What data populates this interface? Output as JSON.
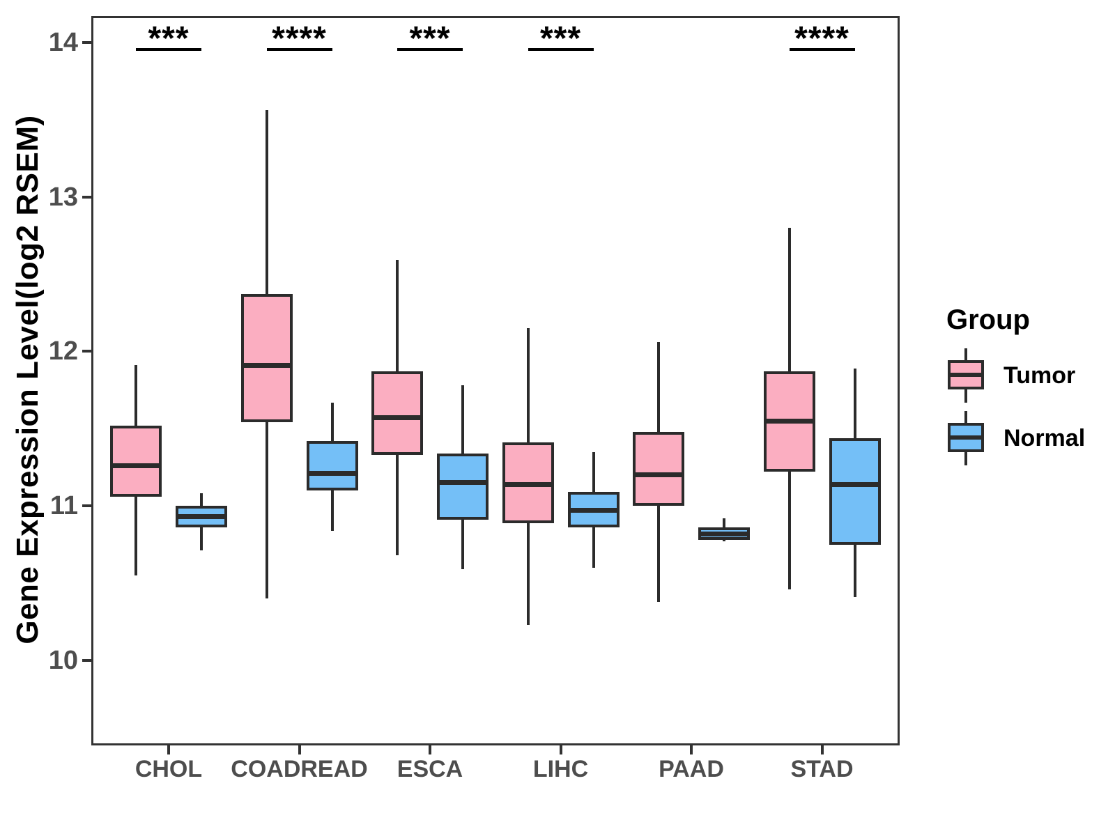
{
  "style_colors": {
    "box_stroke": "#2b2b2b",
    "axis_line": "#333333",
    "tick_label": "#4d4d4d",
    "tumor_fill": "#FBAEC1",
    "normal_fill": "#74BFF7"
  },
  "chart_data": {
    "type": "boxplot",
    "title": "",
    "xlabel": "",
    "ylabel": "Gene Expression Level(log2 RSEM)",
    "categories": [
      "CHOL",
      "COADREAD",
      "ESCA",
      "LIHC",
      "PAAD",
      "STAD"
    ],
    "yticks": [
      "10",
      "11",
      "12",
      "13",
      "14"
    ],
    "ylim": [
      9.45,
      14.17
    ],
    "grid": false,
    "legend_position": "right-center",
    "legend": {
      "title": "Group",
      "entries": [
        "Tumor",
        "Normal"
      ]
    },
    "groups": [
      {
        "name": "Tumor",
        "color": "#FBAEC1"
      },
      {
        "name": "Normal",
        "color": "#74BFF7"
      }
    ],
    "significance": [
      {
        "category": "CHOL",
        "label": "***"
      },
      {
        "category": "COADREAD",
        "label": "****"
      },
      {
        "category": "ESCA",
        "label": "***"
      },
      {
        "category": "LIHC",
        "label": "***"
      },
      {
        "category": "PAAD",
        "label": ""
      },
      {
        "category": "STAD",
        "label": "****"
      }
    ],
    "series": [
      {
        "group": "Tumor",
        "boxes": [
          {
            "category": "CHOL",
            "min": 10.55,
            "q1": 11.06,
            "median": 11.26,
            "q3": 11.52,
            "max": 11.91
          },
          {
            "category": "COADREAD",
            "min": 10.4,
            "q1": 11.54,
            "median": 11.91,
            "q3": 12.37,
            "max": 13.56
          },
          {
            "category": "ESCA",
            "min": 10.68,
            "q1": 11.33,
            "median": 11.57,
            "q3": 11.87,
            "max": 12.59
          },
          {
            "category": "LIHC",
            "min": 10.23,
            "q1": 10.89,
            "median": 11.14,
            "q3": 11.41,
            "max": 12.15
          },
          {
            "category": "PAAD",
            "min": 10.38,
            "q1": 11.0,
            "median": 11.2,
            "q3": 11.48,
            "max": 12.06
          },
          {
            "category": "STAD",
            "min": 10.46,
            "q1": 11.22,
            "median": 11.55,
            "q3": 11.87,
            "max": 12.8
          }
        ]
      },
      {
        "group": "Normal",
        "boxes": [
          {
            "category": "CHOL",
            "min": 10.71,
            "q1": 10.86,
            "median": 10.93,
            "q3": 11.0,
            "max": 11.08
          },
          {
            "category": "COADREAD",
            "min": 10.84,
            "q1": 11.1,
            "median": 11.21,
            "q3": 11.42,
            "max": 11.67
          },
          {
            "category": "ESCA",
            "min": 10.59,
            "q1": 10.91,
            "median": 11.15,
            "q3": 11.34,
            "max": 11.78
          },
          {
            "category": "LIHC",
            "min": 10.6,
            "q1": 10.86,
            "median": 10.97,
            "q3": 11.09,
            "max": 11.35
          },
          {
            "category": "PAAD",
            "min": 10.77,
            "q1": 10.78,
            "median": 10.82,
            "q3": 10.86,
            "max": 10.92
          },
          {
            "category": "STAD",
            "min": 10.41,
            "q1": 10.75,
            "median": 11.14,
            "q3": 11.44,
            "max": 11.89
          }
        ]
      }
    ]
  }
}
